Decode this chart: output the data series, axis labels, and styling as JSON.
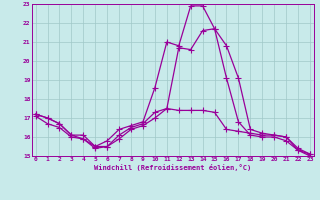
{
  "x": [
    0,
    1,
    2,
    3,
    4,
    5,
    6,
    7,
    8,
    9,
    10,
    11,
    12,
    13,
    14,
    15,
    16,
    17,
    18,
    19,
    20,
    21,
    22,
    23
  ],
  "line1": [
    17.2,
    17.0,
    16.7,
    16.1,
    16.1,
    15.5,
    15.5,
    16.1,
    16.5,
    16.7,
    17.3,
    17.5,
    17.4,
    17.4,
    17.4,
    17.3,
    16.4,
    16.3,
    16.2,
    16.1,
    16.1,
    16.0,
    15.4,
    15.1
  ],
  "line2": [
    17.2,
    17.0,
    16.7,
    16.1,
    15.9,
    15.5,
    15.8,
    16.4,
    16.6,
    16.8,
    18.6,
    21.0,
    20.8,
    22.9,
    22.9,
    21.7,
    20.8,
    19.1,
    16.4,
    16.2,
    16.1,
    16.0,
    15.3,
    15.1
  ],
  "line3": [
    17.1,
    16.7,
    16.5,
    16.0,
    15.9,
    15.4,
    15.5,
    15.9,
    16.4,
    16.6,
    17.0,
    17.5,
    20.7,
    20.6,
    21.6,
    21.7,
    19.1,
    16.8,
    16.1,
    16.0,
    16.0,
    15.8,
    15.3,
    15.0
  ],
  "bg_color": "#c8eaea",
  "line_color": "#990099",
  "xlabel": "Windchill (Refroidissement éolien,°C)",
  "ylim": [
    15,
    23
  ],
  "xlim": [
    0,
    23
  ],
  "yticks": [
    15,
    16,
    17,
    18,
    19,
    20,
    21,
    22,
    23
  ],
  "xticks": [
    0,
    1,
    2,
    3,
    4,
    5,
    6,
    7,
    8,
    9,
    10,
    11,
    12,
    13,
    14,
    15,
    16,
    17,
    18,
    19,
    20,
    21,
    22,
    23
  ],
  "grid_color": "#a0c8c8",
  "tick_color": "#990099",
  "xlabel_color": "#990099",
  "marker_size": 2.5,
  "line_width": 0.9
}
